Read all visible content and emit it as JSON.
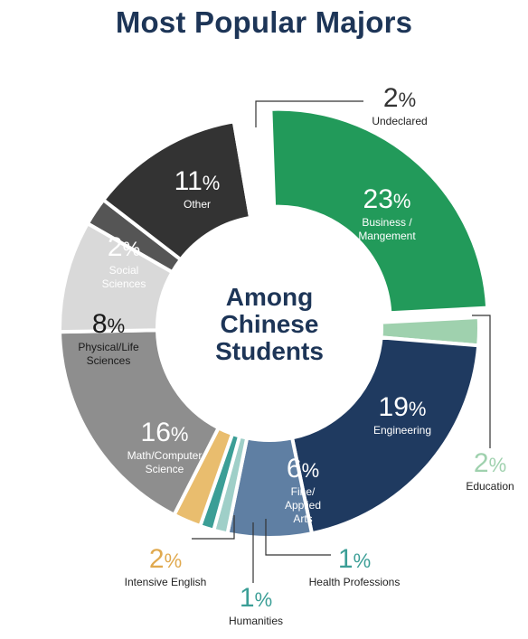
{
  "title": "Most Popular Majors",
  "center_text": [
    "Among",
    "Chinese",
    "Students"
  ],
  "chart_data": {
    "type": "pie",
    "variant": "donut",
    "title": "Most Popular Majors",
    "center_label": "Among Chinese Students",
    "percent_sign": "%",
    "slices": [
      {
        "key": "business",
        "label": [
          "Business /",
          "Mangement"
        ],
        "value": 23,
        "color": "#229a5a",
        "label_position": "inside",
        "exploded": true
      },
      {
        "key": "education",
        "label": [
          "Education"
        ],
        "value": 2,
        "color": "#9fd1ae",
        "label_position": "outside",
        "callout_color": "#9fd1ae"
      },
      {
        "key": "engineering",
        "label": [
          "Engineering"
        ],
        "value": 19,
        "color": "#1f3a60",
        "label_position": "inside"
      },
      {
        "key": "fine-applied-arts",
        "label": [
          "Fine/",
          "Applied",
          "Arts"
        ],
        "value": 6,
        "color": "#5f7fa3",
        "label_position": "inside"
      },
      {
        "key": "health-professions",
        "label": [
          "Health Professions"
        ],
        "value": 1,
        "color": "#9fcfc8",
        "label_position": "outside",
        "callout_color": "#3b9e96"
      },
      {
        "key": "humanities",
        "label": [
          "Humanities"
        ],
        "value": 1,
        "color": "#3b9e96",
        "label_position": "outside",
        "callout_color": "#3b9e96"
      },
      {
        "key": "intensive-english",
        "label": [
          "Intensive English"
        ],
        "value": 2,
        "color": "#e9bd6e",
        "label_position": "outside",
        "callout_color": "#e0a94e"
      },
      {
        "key": "math-computer-science",
        "label": [
          "Math/Computer",
          "Science"
        ],
        "value": 16,
        "color": "#8e8e8e",
        "label_position": "inside"
      },
      {
        "key": "physical-life-sciences",
        "label": [
          "Physical/Life",
          "Sciences"
        ],
        "value": 8,
        "color": "#d9d9d9",
        "label_position": "inside",
        "text_color": "#1a1a1a"
      },
      {
        "key": "social-sciences",
        "label": [
          "Social",
          "Sciences"
        ],
        "value": 2,
        "color": "#555555",
        "label_position": "inside"
      },
      {
        "key": "other",
        "label": [
          "Other"
        ],
        "value": 11,
        "color": "#333333",
        "label_position": "inside"
      },
      {
        "key": "undeclared",
        "label": [
          "Undeclared"
        ],
        "value": 2,
        "color": "#ffffff",
        "label_position": "outside",
        "callout_color": "#333333"
      }
    ]
  }
}
